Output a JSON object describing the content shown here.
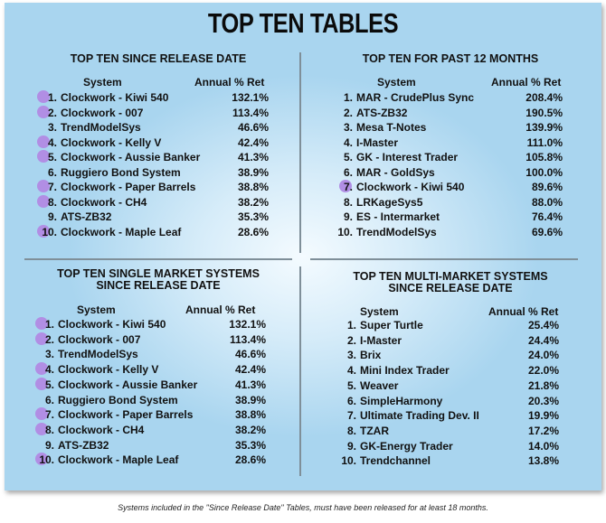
{
  "title": "TOP TEN TABLES",
  "column_system": "System",
  "column_return": "Annual % Ret",
  "footnote": "Systems included in the \"Since Release Date\" Tables, must have been released for at least 18 months.",
  "bubble_color": "#b18ee4",
  "tables": [
    {
      "title_lines": [
        "TOP TEN SINCE RELEASE DATE"
      ],
      "rows": [
        {
          "rank": "1.",
          "system": "Clockwork - Kiwi 540",
          "ret": "132.1%",
          "highlight": true
        },
        {
          "rank": "2.",
          "system": "Clockwork - 007",
          "ret": "113.4%",
          "highlight": true
        },
        {
          "rank": "3.",
          "system": "TrendModelSys",
          "ret": "46.6%",
          "highlight": false
        },
        {
          "rank": "4.",
          "system": "Clockwork - Kelly V",
          "ret": "42.4%",
          "highlight": true
        },
        {
          "rank": "5.",
          "system": "Clockwork - Aussie Banker",
          "ret": "41.3%",
          "highlight": true
        },
        {
          "rank": "6.",
          "system": "Ruggiero Bond System",
          "ret": "38.9%",
          "highlight": false
        },
        {
          "rank": "7.",
          "system": "Clockwork - Paper Barrels",
          "ret": "38.8%",
          "highlight": true
        },
        {
          "rank": "8.",
          "system": "Clockwork - CH4",
          "ret": "38.2%",
          "highlight": true
        },
        {
          "rank": "9.",
          "system": "ATS-ZB32",
          "ret": "35.3%",
          "highlight": false
        },
        {
          "rank": "10.",
          "system": "Clockwork - Maple Leaf",
          "ret": "28.6%",
          "highlight": true
        }
      ]
    },
    {
      "title_lines": [
        "TOP TEN FOR PAST 12 MONTHS"
      ],
      "rows": [
        {
          "rank": "1.",
          "system": "MAR - CrudePlus Sync",
          "ret": "208.4%",
          "highlight": false
        },
        {
          "rank": "2.",
          "system": "ATS-ZB32",
          "ret": "190.5%",
          "highlight": false
        },
        {
          "rank": "3.",
          "system": "Mesa T-Notes",
          "ret": "139.9%",
          "highlight": false
        },
        {
          "rank": "4.",
          "system": "I-Master",
          "ret": "111.0%",
          "highlight": false
        },
        {
          "rank": "5.",
          "system": "GK - Interest Trader",
          "ret": "105.8%",
          "highlight": false
        },
        {
          "rank": "6.",
          "system": "MAR - GoldSys",
          "ret": "100.0%",
          "highlight": false
        },
        {
          "rank": "7.",
          "system": "Clockwork - Kiwi 540",
          "ret": "89.6%",
          "highlight": true
        },
        {
          "rank": "8.",
          "system": "LRKageSys5",
          "ret": "88.0%",
          "highlight": false
        },
        {
          "rank": "9.",
          "system": "ES - Intermarket",
          "ret": "76.4%",
          "highlight": false
        },
        {
          "rank": "10.",
          "system": "TrendModelSys",
          "ret": "69.6%",
          "highlight": false
        }
      ]
    },
    {
      "title_lines": [
        "TOP TEN SINGLE MARKET SYSTEMS",
        "SINCE RELEASE DATE"
      ],
      "rows": [
        {
          "rank": "1.",
          "system": "Clockwork - Kiwi 540",
          "ret": "132.1%",
          "highlight": true
        },
        {
          "rank": "2.",
          "system": "Clockwork - 007",
          "ret": "113.4%",
          "highlight": true
        },
        {
          "rank": "3.",
          "system": "TrendModelSys",
          "ret": "46.6%",
          "highlight": false
        },
        {
          "rank": "4.",
          "system": "Clockwork - Kelly V",
          "ret": "42.4%",
          "highlight": true
        },
        {
          "rank": "5.",
          "system": "Clockwork - Aussie Banker",
          "ret": "41.3%",
          "highlight": true
        },
        {
          "rank": "6.",
          "system": "Ruggiero Bond System",
          "ret": "38.9%",
          "highlight": false
        },
        {
          "rank": "7.",
          "system": "Clockwork - Paper Barrels",
          "ret": "38.8%",
          "highlight": true
        },
        {
          "rank": "8.",
          "system": "Clockwork - CH4",
          "ret": "38.2%",
          "highlight": true
        },
        {
          "rank": "9.",
          "system": "ATS-ZB32",
          "ret": "35.3%",
          "highlight": false
        },
        {
          "rank": "10.",
          "system": "Clockwork - Maple Leaf",
          "ret": "28.6%",
          "highlight": true
        }
      ]
    },
    {
      "title_lines": [
        "TOP TEN MULTI-MARKET SYSTEMS",
        "SINCE RELEASE DATE"
      ],
      "rows": [
        {
          "rank": "1.",
          "system": "Super Turtle",
          "ret": "25.4%",
          "highlight": false
        },
        {
          "rank": "2.",
          "system": "I-Master",
          "ret": "24.4%",
          "highlight": false
        },
        {
          "rank": "3.",
          "system": "Brix",
          "ret": "24.0%",
          "highlight": false
        },
        {
          "rank": "4.",
          "system": "Mini Index Trader",
          "ret": "22.0%",
          "highlight": false
        },
        {
          "rank": "5.",
          "system": "Weaver",
          "ret": "21.8%",
          "highlight": false
        },
        {
          "rank": "6.",
          "system": "SimpleHarmony",
          "ret": "20.3%",
          "highlight": false
        },
        {
          "rank": "7.",
          "system": "Ultimate Trading Dev. II",
          "ret": "19.9%",
          "highlight": false
        },
        {
          "rank": "8.",
          "system": "TZAR",
          "ret": "17.2%",
          "highlight": false
        },
        {
          "rank": "9.",
          "system": "GK-Energy Trader",
          "ret": "14.0%",
          "highlight": false
        },
        {
          "rank": "10.",
          "system": "Trendchannel",
          "ret": "13.8%",
          "highlight": false
        }
      ]
    }
  ]
}
